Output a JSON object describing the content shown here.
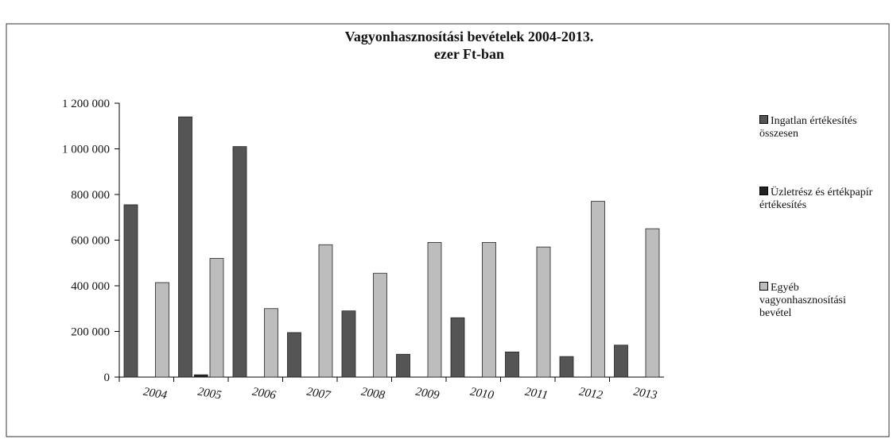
{
  "chart_data": {
    "type": "bar",
    "title": "Vagyonhasznosítási bevételek 2004-2013.",
    "subtitle": "ezer Ft-ban",
    "categories": [
      "2004",
      "2005",
      "2006",
      "2007",
      "2008",
      "2009",
      "2010",
      "2011",
      "2012",
      "2013"
    ],
    "series": [
      {
        "name": "Ingatlan értékesítés összesen",
        "color": "#555555",
        "values": [
          755,
          1140,
          1010,
          195,
          290,
          100,
          260,
          110,
          90,
          140
        ]
      },
      {
        "name": "Üzletrész és értékpapír értékesítés",
        "color": "#222222",
        "values": [
          0,
          10,
          0,
          0,
          0,
          0,
          0,
          0,
          0,
          0
        ]
      },
      {
        "name": "Egyéb vagyonhasznosítási bevétel",
        "color": "#bdbdbd",
        "values": [
          414,
          520,
          300,
          580,
          455,
          590,
          590,
          570,
          770,
          650
        ]
      }
    ],
    "ylim": [
      0,
      1200
    ],
    "yticks": [
      {
        "value": 0,
        "label": "0"
      },
      {
        "value": 200,
        "label": "200 000"
      },
      {
        "value": 400,
        "label": "400 000"
      },
      {
        "value": 600,
        "label": "600 000"
      },
      {
        "value": 800,
        "label": "800 000"
      },
      {
        "value": 1000,
        "label": "1 000 000"
      },
      {
        "value": 1200,
        "label": "1 200 000"
      }
    ],
    "legend": "right"
  }
}
